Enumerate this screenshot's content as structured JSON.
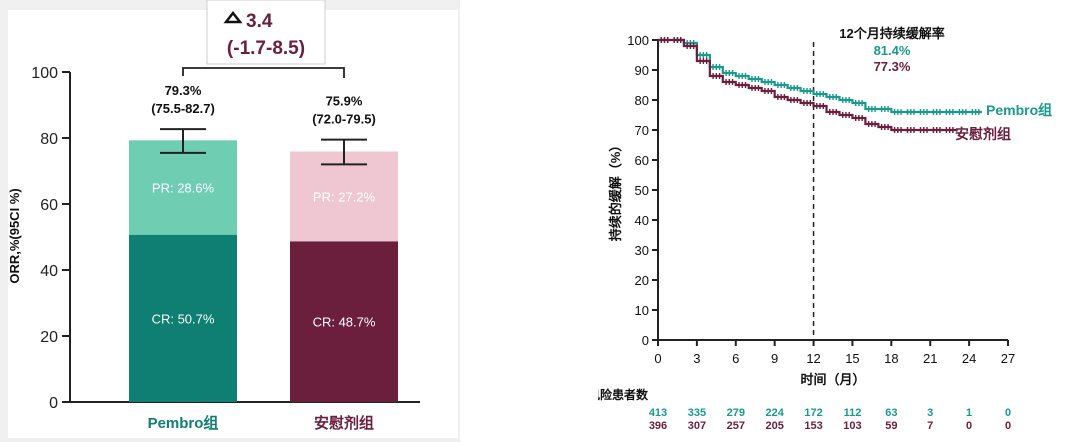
{
  "chart_data": [
    {
      "type": "bar",
      "stacked": true,
      "categories": [
        "Pembro组",
        "安慰剂组"
      ],
      "ylabel": "ORR,%(95CI %)",
      "ylim": [
        0,
        100
      ],
      "yticks": [
        0,
        20,
        40,
        60,
        80,
        100
      ],
      "series": [
        {
          "name": "CR",
          "values": [
            50.7,
            48.7
          ],
          "labels": [
            "CR: 50.7%",
            "CR: 48.7%"
          ],
          "colors": [
            "#0e7f72",
            "#6b1f3c"
          ]
        },
        {
          "name": "PR",
          "values": [
            28.6,
            27.2
          ],
          "labels": [
            "PR: 28.6%",
            "PR: 27.2%"
          ],
          "colors": [
            "#6fcdb1",
            "#efc7d3"
          ]
        }
      ],
      "totals": [
        {
          "value": 79.3,
          "text": "79.3%",
          "ci_text": "(75.5-82.7)",
          "ci": [
            75.5,
            82.7
          ]
        },
        {
          "value": 75.9,
          "text": "75.9%",
          "ci_text": "(72.0-79.5)",
          "ci": [
            72.0,
            79.5
          ]
        }
      ],
      "difference": {
        "text": "3.4",
        "ci_text": "(-1.7-8.5)",
        "color": "#6b1f3c"
      },
      "category_colors": [
        "#0e7f72",
        "#6b1f3c"
      ],
      "grid": false
    },
    {
      "type": "line",
      "title": "12个月持续缓解率",
      "xlabel": "时间（月）",
      "ylabel": "持续的缓解（%）",
      "xlim": [
        0,
        27
      ],
      "ylim": [
        0,
        100
      ],
      "xticks": [
        0,
        3,
        6,
        9,
        12,
        15,
        18,
        21,
        24,
        27
      ],
      "yticks": [
        0,
        10,
        20,
        30,
        40,
        50,
        60,
        70,
        80,
        90,
        100
      ],
      "reference_line_x": 12,
      "grid": false,
      "series": [
        {
          "name": "Pembro组",
          "color": "#1a9a8a",
          "rate_12m": "81.4%",
          "x": [
            0,
            1,
            2,
            3,
            4,
            5,
            6,
            7,
            8,
            9,
            10,
            11,
            12,
            13,
            14,
            15,
            16,
            17,
            18,
            19,
            20,
            21,
            22,
            23,
            24,
            25
          ],
          "y": [
            100,
            100,
            99,
            95,
            91,
            89,
            88,
            87,
            86,
            85,
            84,
            83,
            82,
            81,
            80,
            79,
            77,
            77,
            76,
            76,
            76,
            76,
            76,
            76,
            76,
            76
          ]
        },
        {
          "name": "安慰剂组",
          "color": "#6b1f3c",
          "rate_12m": "77.3%",
          "x": [
            0,
            1,
            2,
            3,
            4,
            5,
            6,
            7,
            8,
            9,
            10,
            11,
            12,
            13,
            14,
            15,
            16,
            17,
            18,
            19,
            20,
            21,
            22,
            23
          ],
          "y": [
            100,
            100,
            98,
            93,
            88,
            86,
            85,
            84,
            83,
            81,
            80,
            79,
            78,
            76,
            75,
            74,
            72,
            71,
            70,
            70,
            70,
            70,
            70,
            70
          ]
        }
      ],
      "risk_table": {
        "title": "风险患者数",
        "times": [
          0,
          3,
          6,
          9,
          12,
          15,
          18,
          21,
          24,
          27
        ],
        "rows": [
          {
            "color": "#1a9a8a",
            "values": [
              "413",
              "335",
              "279",
              "224",
              "172",
              "112",
              "63",
              "3",
              "1",
              "0"
            ]
          },
          {
            "color": "#6b1f3c",
            "values": [
              "396",
              "307",
              "257",
              "205",
              "153",
              "103",
              "59",
              "7",
              "0",
              "0"
            ]
          }
        ]
      }
    }
  ]
}
